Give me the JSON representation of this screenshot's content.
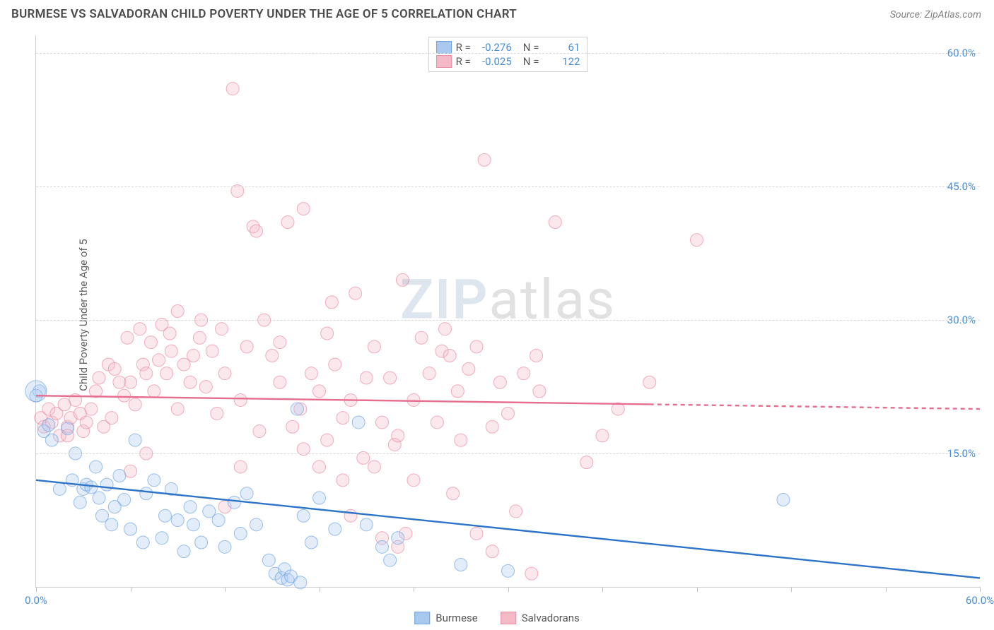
{
  "title": "BURMESE VS SALVADORAN CHILD POVERTY UNDER THE AGE OF 5 CORRELATION CHART",
  "source_label": "Source: ",
  "source_name": "ZipAtlas.com",
  "ylabel": "Child Poverty Under the Age of 5",
  "watermark_a": "ZIP",
  "watermark_b": "atlas",
  "chart": {
    "type": "scatter",
    "background_color": "#ffffff",
    "grid_color": "#d8d8d8",
    "xlim": [
      0,
      60
    ],
    "ylim": [
      0,
      62
    ],
    "yticks": [
      15,
      30,
      45,
      60
    ],
    "ytick_labels": [
      "15.0%",
      "30.0%",
      "45.0%",
      "60.0%"
    ],
    "xticks": [
      0,
      6,
      12,
      18,
      24,
      30,
      36,
      42,
      48,
      54,
      60
    ],
    "xtick_labels": {
      "0": "0.0%",
      "60": "60.0%"
    },
    "marker_radius": 9,
    "marker_opacity": 0.32,
    "line_width": 2.4
  },
  "series": {
    "burmese": {
      "label": "Burmese",
      "color_fill": "#a8c8ee",
      "color_stroke": "#6fa5df",
      "line_color": "#2b74c9",
      "R": "-0.276",
      "N": "61",
      "trend": {
        "x1": 0,
        "y1": 12.0,
        "x2": 60,
        "y2": 1.0,
        "dashed_from": 60
      },
      "points": [
        [
          0.2,
          22.0
        ],
        [
          0.5,
          17.5
        ],
        [
          0.8,
          18.2
        ],
        [
          1.0,
          16.5
        ],
        [
          1.5,
          11.0
        ],
        [
          2.0,
          17.8
        ],
        [
          2.3,
          12.0
        ],
        [
          2.5,
          15.0
        ],
        [
          2.8,
          9.5
        ],
        [
          3.0,
          11.0
        ],
        [
          3.2,
          11.5
        ],
        [
          3.5,
          11.2
        ],
        [
          3.8,
          13.5
        ],
        [
          4.0,
          10.0
        ],
        [
          4.2,
          8.0
        ],
        [
          4.5,
          11.5
        ],
        [
          4.8,
          7.0
        ],
        [
          5.0,
          9.0
        ],
        [
          5.3,
          12.5
        ],
        [
          5.6,
          9.8
        ],
        [
          6.0,
          6.5
        ],
        [
          6.3,
          16.5
        ],
        [
          6.8,
          5.0
        ],
        [
          7.0,
          10.5
        ],
        [
          7.5,
          12.0
        ],
        [
          8.0,
          5.5
        ],
        [
          8.2,
          8.0
        ],
        [
          8.6,
          11.0
        ],
        [
          9.0,
          7.5
        ],
        [
          9.4,
          4.0
        ],
        [
          9.8,
          9.0
        ],
        [
          10.0,
          7.0
        ],
        [
          10.5,
          5.0
        ],
        [
          11.0,
          8.5
        ],
        [
          11.6,
          7.5
        ],
        [
          12.0,
          4.5
        ],
        [
          12.6,
          9.5
        ],
        [
          13.0,
          6.0
        ],
        [
          13.4,
          10.5
        ],
        [
          14.0,
          7.0
        ],
        [
          14.8,
          3.0
        ],
        [
          15.2,
          1.5
        ],
        [
          15.6,
          1.0
        ],
        [
          15.8,
          2.0
        ],
        [
          16.0,
          0.8
        ],
        [
          16.2,
          1.2
        ],
        [
          16.6,
          20.0
        ],
        [
          16.8,
          0.5
        ],
        [
          17.0,
          8.0
        ],
        [
          17.5,
          5.0
        ],
        [
          18.0,
          10.0
        ],
        [
          19.0,
          6.5
        ],
        [
          20.5,
          18.5
        ],
        [
          21.0,
          7.0
        ],
        [
          22.0,
          4.5
        ],
        [
          22.5,
          3.0
        ],
        [
          23.0,
          5.5
        ],
        [
          27.0,
          2.5
        ],
        [
          30.0,
          1.8
        ],
        [
          47.5,
          9.8
        ],
        [
          0.0,
          21.5
        ]
      ]
    },
    "salvadorans": {
      "label": "Salvadorans",
      "color_fill": "#f4b9c6",
      "color_stroke": "#ea8ba3",
      "line_color": "#e76d8f",
      "R": "-0.025",
      "N": "122",
      "trend": {
        "x1": 0,
        "y1": 21.5,
        "x2": 60,
        "y2": 20.0,
        "dashed_from": 39
      },
      "points": [
        [
          0.3,
          19.0
        ],
        [
          0.5,
          18.0
        ],
        [
          0.8,
          20.0
        ],
        [
          1.0,
          18.5
        ],
        [
          1.3,
          19.5
        ],
        [
          1.5,
          17.0
        ],
        [
          1.8,
          20.5
        ],
        [
          2.0,
          18.0
        ],
        [
          2.0,
          17.0
        ],
        [
          2.2,
          19.0
        ],
        [
          2.5,
          21.0
        ],
        [
          2.8,
          19.5
        ],
        [
          3.0,
          17.5
        ],
        [
          3.2,
          18.5
        ],
        [
          3.5,
          20.0
        ],
        [
          3.8,
          22.0
        ],
        [
          4.0,
          23.5
        ],
        [
          4.3,
          18.0
        ],
        [
          4.6,
          25.0
        ],
        [
          4.8,
          19.0
        ],
        [
          5.0,
          24.5
        ],
        [
          5.3,
          23.0
        ],
        [
          5.6,
          21.5
        ],
        [
          5.8,
          28.0
        ],
        [
          6.0,
          23.0
        ],
        [
          6.3,
          20.5
        ],
        [
          6.6,
          29.0
        ],
        [
          6.8,
          25.0
        ],
        [
          7.0,
          24.0
        ],
        [
          7.3,
          27.5
        ],
        [
          7.5,
          22.0
        ],
        [
          7.8,
          25.5
        ],
        [
          8.0,
          29.5
        ],
        [
          8.3,
          24.0
        ],
        [
          8.6,
          26.5
        ],
        [
          9.0,
          20.0
        ],
        [
          9.4,
          25.0
        ],
        [
          9.8,
          23.0
        ],
        [
          10.0,
          26.0
        ],
        [
          10.4,
          28.0
        ],
        [
          10.8,
          22.5
        ],
        [
          11.2,
          26.5
        ],
        [
          11.5,
          19.5
        ],
        [
          11.8,
          29.0
        ],
        [
          12.0,
          24.0
        ],
        [
          12.5,
          56.0
        ],
        [
          12.8,
          44.5
        ],
        [
          13.0,
          21.0
        ],
        [
          13.4,
          27.0
        ],
        [
          13.8,
          40.5
        ],
        [
          14.0,
          40.0
        ],
        [
          14.2,
          17.5
        ],
        [
          15.0,
          26.0
        ],
        [
          15.5,
          23.0
        ],
        [
          16.0,
          41.0
        ],
        [
          16.3,
          18.0
        ],
        [
          16.8,
          20.0
        ],
        [
          17.0,
          42.5
        ],
        [
          17.5,
          24.0
        ],
        [
          18.0,
          22.0
        ],
        [
          18.5,
          28.5
        ],
        [
          18.8,
          32.0
        ],
        [
          19.0,
          25.0
        ],
        [
          19.5,
          19.0
        ],
        [
          20.0,
          21.0
        ],
        [
          20.3,
          33.0
        ],
        [
          20.8,
          14.5
        ],
        [
          21.0,
          23.5
        ],
        [
          21.5,
          27.0
        ],
        [
          22.0,
          18.5
        ],
        [
          22.0,
          5.5
        ],
        [
          22.5,
          23.5
        ],
        [
          22.8,
          16.0
        ],
        [
          23.0,
          4.5
        ],
        [
          23.3,
          34.5
        ],
        [
          23.5,
          6.0
        ],
        [
          24.0,
          21.0
        ],
        [
          24.5,
          28.0
        ],
        [
          25.0,
          24.0
        ],
        [
          25.5,
          18.5
        ],
        [
          25.8,
          26.5
        ],
        [
          26.0,
          29.0
        ],
        [
          26.3,
          26.0
        ],
        [
          26.8,
          22.0
        ],
        [
          27.0,
          16.5
        ],
        [
          27.5,
          24.5
        ],
        [
          28.0,
          27.0
        ],
        [
          28.5,
          48.0
        ],
        [
          29.0,
          18.0
        ],
        [
          29.5,
          23.0
        ],
        [
          30.0,
          19.5
        ],
        [
          30.5,
          8.5
        ],
        [
          31.0,
          24.0
        ],
        [
          31.5,
          1.5
        ],
        [
          31.8,
          26.0
        ],
        [
          33.0,
          41.0
        ],
        [
          35.0,
          14.0
        ],
        [
          37.0,
          20.0
        ],
        [
          39.0,
          23.0
        ],
        [
          42.0,
          39.0
        ],
        [
          18.0,
          13.5
        ],
        [
          19.5,
          12.0
        ],
        [
          20.0,
          8.0
        ],
        [
          14.5,
          30.0
        ],
        [
          15.5,
          27.5
        ],
        [
          9.0,
          31.0
        ],
        [
          10.5,
          30.0
        ],
        [
          8.5,
          28.5
        ],
        [
          6.0,
          13.0
        ],
        [
          7.0,
          15.0
        ],
        [
          12.0,
          9.0
        ],
        [
          13.0,
          13.5
        ],
        [
          17.0,
          15.5
        ],
        [
          18.5,
          16.5
        ],
        [
          24.0,
          12.0
        ],
        [
          26.5,
          10.5
        ],
        [
          28.0,
          6.0
        ],
        [
          21.5,
          13.5
        ],
        [
          23.0,
          17.0
        ],
        [
          29.0,
          4.0
        ],
        [
          32.0,
          22.0
        ],
        [
          36.0,
          17.0
        ]
      ]
    }
  },
  "legend_labels": {
    "R": "R =",
    "N": "N ="
  }
}
